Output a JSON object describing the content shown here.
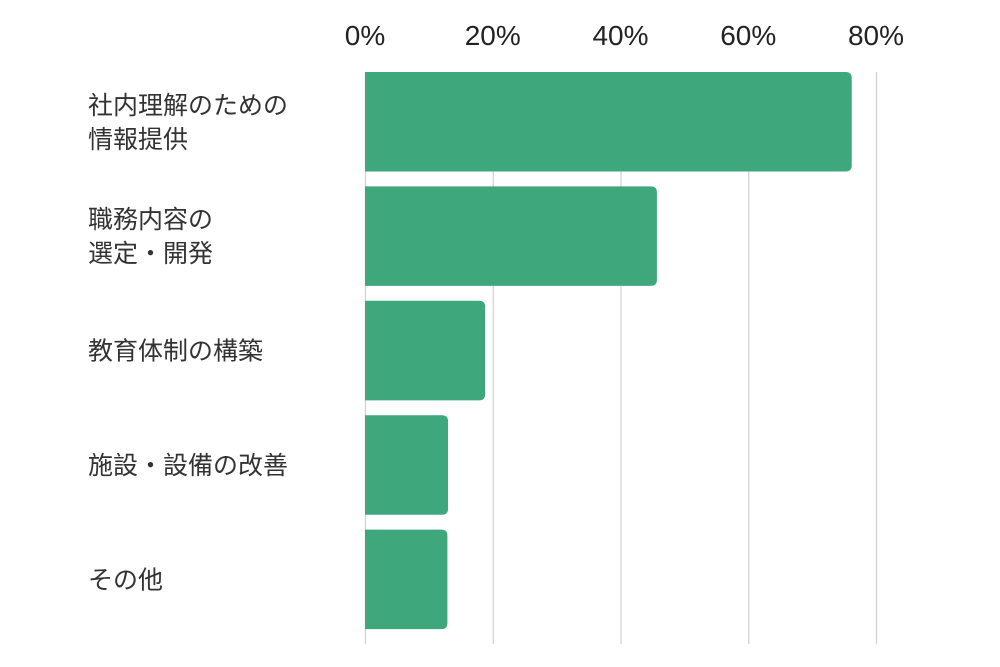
{
  "chart_data": {
    "type": "bar",
    "orientation": "horizontal",
    "title": "",
    "xlabel": "",
    "ylabel": "",
    "categories": [
      [
        "社内理解のための",
        "情報提供"
      ],
      [
        "職務内容の",
        "選定・開発"
      ],
      [
        "教育体制の構築"
      ],
      [
        "施設・設備の改善"
      ],
      [
        "その他"
      ]
    ],
    "values": [
      76.2,
      45.7,
      18.8,
      13.0,
      12.9
    ],
    "xlim": [
      0,
      80
    ],
    "x_ticks": [
      "0%",
      "20%",
      "40%",
      "60%",
      "80%"
    ],
    "x_tick_values": [
      0,
      20,
      40,
      60,
      80
    ],
    "x_axis_position": "top",
    "grid": true,
    "legend": "none",
    "colors": {
      "bar": "#3ea77b",
      "grid": "#d0d0d0"
    }
  }
}
